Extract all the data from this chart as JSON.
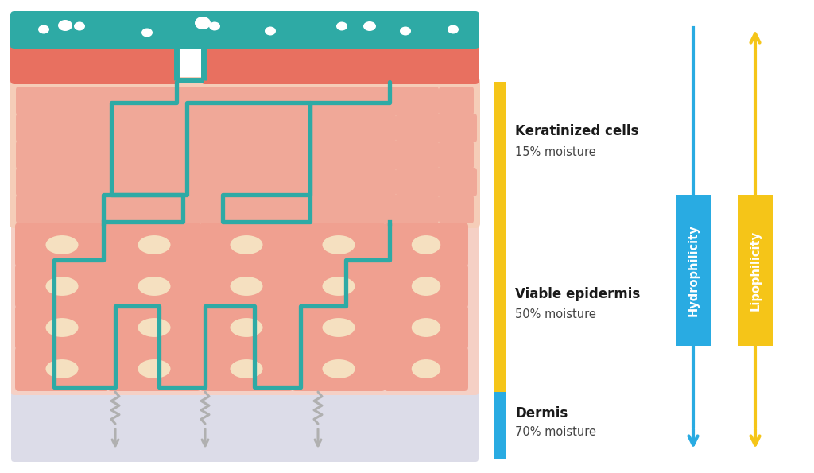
{
  "bg_color": "#ffffff",
  "teal_color": "#2eaaa5",
  "salmon_dark": "#e87060",
  "salmon_mid": "#f0a898",
  "sc_bg": "#f5cdb8",
  "ve_bg": "#f5d0c5",
  "cell_pink": "#f0a090",
  "cell_nucleus": "#f5e0c0",
  "dermis_color": "#dcdce8",
  "yellow_bar": "#f5c518",
  "blue_arrow": "#29abe2",
  "gray_color": "#b0b0b0",
  "white": "#ffffff",
  "black": "#1a1a1a",
  "label1_title": "Keratinized cells",
  "label1_sub": "15% moisture",
  "label2_title": "Viable epidermis",
  "label2_sub": "50% moisture",
  "label3_title": "Dermis",
  "label3_sub": "70% moisture",
  "hydro_label": "Hydrophilicity",
  "lipo_label": "Lipophilicity",
  "title_fontsize": 12,
  "sub_fontsize": 10.5,
  "arrow_label_fontsize": 10.5
}
